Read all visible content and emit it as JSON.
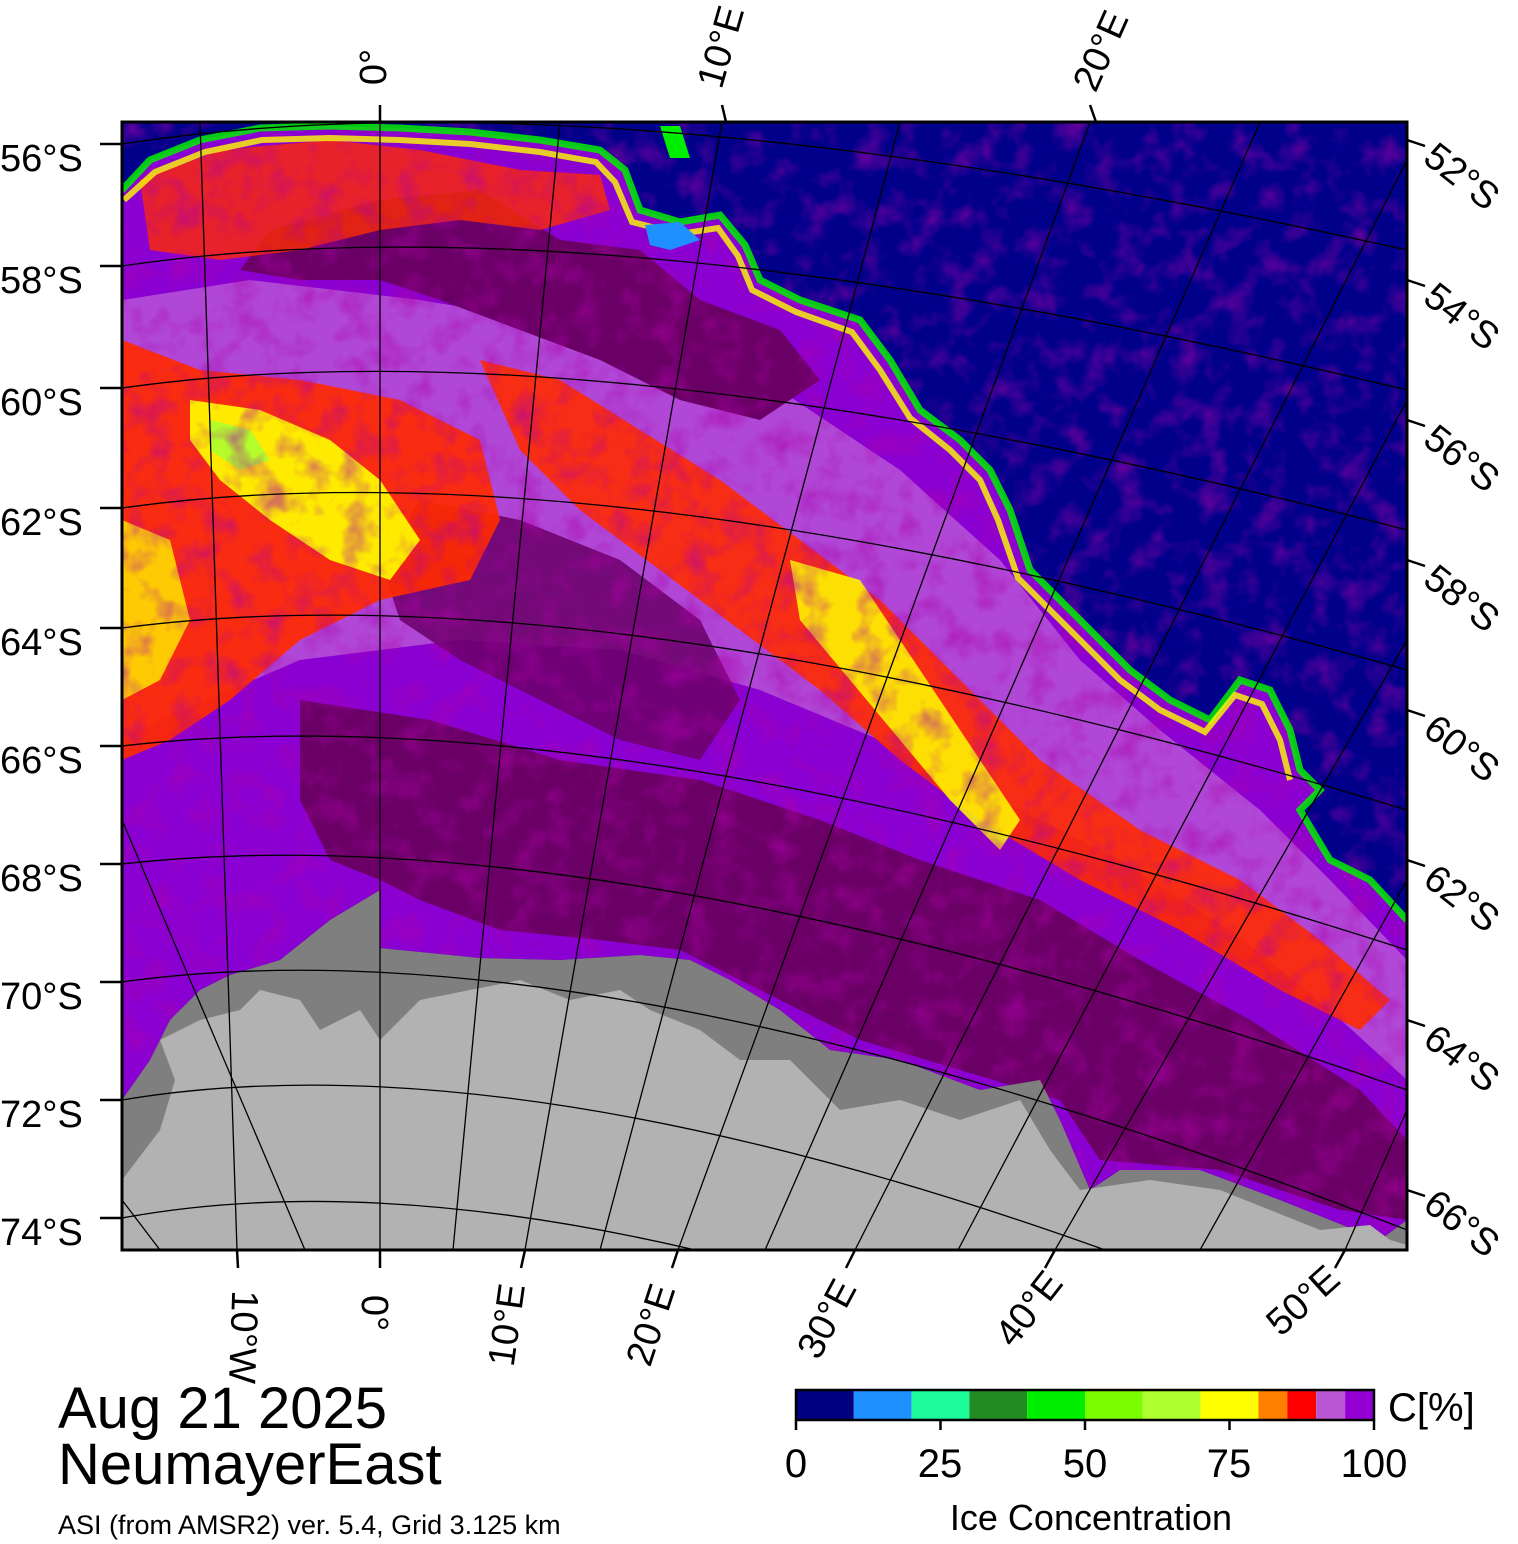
{
  "map": {
    "title_date": "Aug 21 2025",
    "region": "NeumayerEast",
    "source_note": "ASI (from AMSR2) ver. 5.4,  Grid 3.125 km",
    "left_lat_labels": [
      "56°S",
      "58°S",
      "60°S",
      "62°S",
      "64°S",
      "66°S",
      "68°S",
      "70°S",
      "72°S",
      "74°S"
    ],
    "right_lat_labels": [
      "52°S",
      "54°S",
      "56°S",
      "58°S",
      "60°S",
      "62°S",
      "64°S",
      "66°S"
    ],
    "top_lon_labels": [
      "0°",
      "10°E",
      "20°E"
    ],
    "bottom_lon_labels": [
      "10°W",
      "0°",
      "10°E",
      "20°E",
      "30°E",
      "40°E",
      "50°E"
    ],
    "colors": {
      "open_water": "#00008b",
      "land": "#b2b2b2",
      "ice_shelf": "#7f7f7f",
      "high_ice": "#6a0066",
      "ice_95": "#8a00d2",
      "ice_90": "#b44fd6"
    }
  },
  "colorbar": {
    "unit": "C[%]",
    "title": "Ice Concentration",
    "tick_labels": [
      "0",
      "25",
      "50",
      "75",
      "100"
    ],
    "range": [
      0,
      100
    ],
    "bins": [
      {
        "from": 0,
        "to": 10,
        "color": "#000080"
      },
      {
        "from": 10,
        "to": 20,
        "color": "#1e90ff"
      },
      {
        "from": 20,
        "to": 30,
        "color": "#1cfa9a"
      },
      {
        "from": 30,
        "to": 40,
        "color": "#228b22"
      },
      {
        "from": 40,
        "to": 50,
        "color": "#00ee00"
      },
      {
        "from": 50,
        "to": 60,
        "color": "#7cfc00"
      },
      {
        "from": 60,
        "to": 70,
        "color": "#adff2f"
      },
      {
        "from": 70,
        "to": 80,
        "color": "#ffff00"
      },
      {
        "from": 80,
        "to": 85,
        "color": "#ff7f00"
      },
      {
        "from": 85,
        "to": 90,
        "color": "#ff0000"
      },
      {
        "from": 90,
        "to": 95,
        "color": "#ba55d3"
      },
      {
        "from": 95,
        "to": 100,
        "color": "#9400d3"
      }
    ]
  }
}
